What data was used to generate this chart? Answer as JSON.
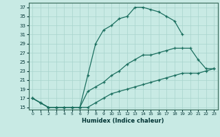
{
  "xlabel": "Humidex (Indice chaleur)",
  "ylabel": "",
  "xlim": [
    -0.5,
    23.5
  ],
  "ylim": [
    14.5,
    38
  ],
  "yticks": [
    15,
    17,
    19,
    21,
    23,
    25,
    27,
    29,
    31,
    33,
    35,
    37
  ],
  "xticks": [
    0,
    1,
    2,
    3,
    4,
    5,
    6,
    7,
    8,
    9,
    10,
    11,
    12,
    13,
    14,
    15,
    16,
    17,
    18,
    19,
    20,
    21,
    22,
    23
  ],
  "background_color": "#c8eae4",
  "grid_color": "#a8d4cc",
  "line_color": "#1a6e5e",
  "curves": [
    {
      "x": [
        0,
        1,
        2,
        3,
        4,
        5,
        6,
        7,
        8,
        9,
        10,
        11,
        12,
        13,
        14,
        15,
        16,
        17,
        18,
        19
      ],
      "y": [
        17,
        16,
        15,
        15,
        15,
        15,
        15,
        22,
        29,
        32,
        33,
        34.5,
        35,
        37,
        37,
        36.5,
        36,
        35,
        34,
        31
      ],
      "marker": "+"
    },
    {
      "x": [
        0,
        1,
        2,
        3,
        4,
        5,
        6,
        7,
        8,
        9,
        10,
        11,
        12,
        13,
        14,
        15,
        16,
        17,
        18,
        19,
        20,
        21,
        22,
        23
      ],
      "y": [
        17,
        16,
        15,
        15,
        15,
        15,
        15,
        18.5,
        19.5,
        20.5,
        22,
        23,
        24.5,
        25.5,
        26.5,
        26.5,
        27,
        27.5,
        28,
        28,
        28,
        25.5,
        23.5,
        23.5
      ],
      "marker": "+"
    },
    {
      "x": [
        0,
        1,
        2,
        3,
        4,
        5,
        6,
        7,
        8,
        9,
        10,
        11,
        12,
        13,
        14,
        15,
        16,
        17,
        18,
        19,
        20,
        21,
        22,
        23
      ],
      "y": [
        17,
        16,
        15,
        15,
        15,
        15,
        15,
        15,
        16,
        17,
        18,
        18.5,
        19,
        19.5,
        20,
        20.5,
        21,
        21.5,
        22,
        22.5,
        22.5,
        22.5,
        23,
        23.5
      ],
      "marker": "+"
    }
  ]
}
